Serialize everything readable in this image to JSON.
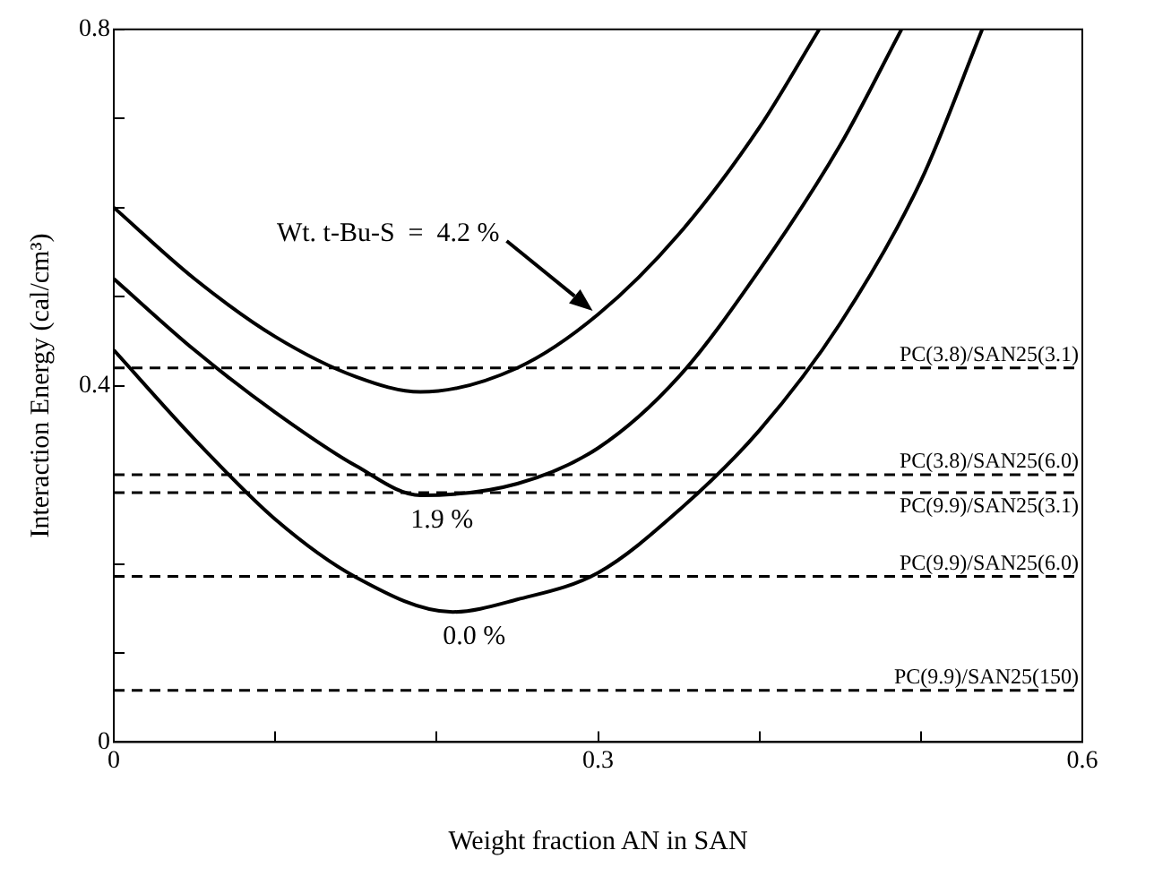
{
  "chart_data": {
    "type": "line",
    "xlabel": "Weight fraction AN in SAN",
    "ylabel": "Interaction Energy (cal/cm³)",
    "xlim": [
      0,
      0.6
    ],
    "xticks": [
      0,
      {
        "value": 0.1,
        "label": null
      },
      {
        "value": 0.2,
        "label": null
      },
      0.3,
      {
        "value": 0.4,
        "label": null
      },
      {
        "value": 0.5,
        "label": null
      },
      0.6
    ],
    "ylim": [
      0,
      0.8
    ],
    "yticks": [
      0,
      {
        "value": 0.1,
        "label": null
      },
      {
        "value": 0.2,
        "label": null
      },
      {
        "value": 0.3,
        "label": null
      },
      0.4,
      {
        "value": 0.5,
        "label": null
      },
      {
        "value": 0.6,
        "label": null
      },
      {
        "value": 0.7,
        "label": null
      },
      0.8
    ],
    "grid": false,
    "legend": false,
    "marker": "none",
    "line_style": "solid",
    "series": [
      {
        "name": "Wt. t-Bu-S  =  4.2 %",
        "color": "#000000",
        "x": [
          0,
          0.05,
          0.1,
          0.15,
          0.19,
          0.25,
          0.3,
          0.35,
          0.4,
          0.437
        ],
        "values": [
          0.6,
          0.52,
          0.455,
          0.41,
          0.393,
          0.42,
          0.48,
          0.57,
          0.69,
          0.8
        ]
      },
      {
        "name": "1.9 %",
        "color": "#000000",
        "x": [
          0,
          0.05,
          0.1,
          0.15,
          0.19,
          0.25,
          0.3,
          0.35,
          0.4,
          0.45,
          0.488
        ],
        "values": [
          0.52,
          0.44,
          0.37,
          0.31,
          0.277,
          0.29,
          0.33,
          0.41,
          0.53,
          0.67,
          0.8
        ]
      },
      {
        "name": "0.0 %",
        "color": "#000000",
        "x": [
          0,
          0.05,
          0.1,
          0.15,
          0.21,
          0.25,
          0.3,
          0.35,
          0.4,
          0.45,
          0.5,
          0.538
        ],
        "values": [
          0.44,
          0.34,
          0.25,
          0.185,
          0.146,
          0.16,
          0.19,
          0.26,
          0.35,
          0.47,
          0.63,
          0.8
        ]
      }
    ],
    "ref_lines": [
      {
        "axis": "y",
        "value": 0.42,
        "label": "PC(3.8)/SAN25(3.1)",
        "color": "#000000",
        "line_style": "dashed"
      },
      {
        "axis": "y",
        "value": 0.3,
        "label": "PC(3.8)/SAN25(6.0)",
        "color": "#000000",
        "line_style": "dashed"
      },
      {
        "axis": "y",
        "value": 0.28,
        "label": "PC(9.9)/SAN25(3.1)",
        "color": "#000000",
        "line_style": "dashed"
      },
      {
        "axis": "y",
        "value": 0.186,
        "label": "PC(9.9)/SAN25(6.0)",
        "color": "#000000",
        "line_style": "dashed"
      },
      {
        "axis": "y",
        "value": 0.058,
        "label": "PC(9.9)/SAN25(150)",
        "color": "#000000",
        "line_style": "dashed"
      }
    ]
  }
}
